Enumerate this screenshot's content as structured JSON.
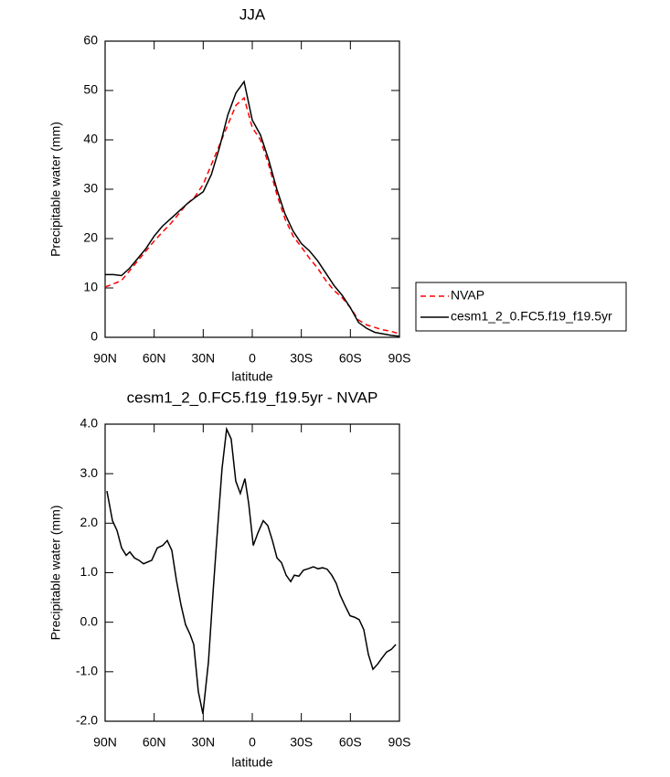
{
  "chart_data": [
    {
      "type": "line",
      "title": "JJA",
      "x_label": "latitude",
      "y_label": "Precipitable water (mm)",
      "x": [
        90,
        85,
        80,
        75,
        70,
        65,
        60,
        55,
        50,
        45,
        40,
        35,
        30,
        25,
        20,
        15,
        10,
        5,
        0,
        -5,
        -10,
        -15,
        -20,
        -25,
        -30,
        -35,
        -40,
        -45,
        -50,
        -55,
        -60,
        -65,
        -70,
        -75,
        -80,
        -85,
        -90
      ],
      "series": [
        {
          "name": "NVAP",
          "color": "#ff0000",
          "line_style": "dashed",
          "values": [
            10.2,
            10.8,
            11.5,
            13.5,
            15.5,
            17.5,
            19.5,
            21.3,
            23,
            25,
            27,
            28.5,
            31,
            35,
            39,
            43,
            47,
            48.5,
            42.5,
            40,
            35,
            29,
            24,
            20.5,
            18.3,
            16,
            14,
            11.5,
            9.5,
            8,
            6,
            3.5,
            2.5,
            2,
            1.5,
            1.2,
            0.7
          ]
        },
        {
          "name": "cesm1_2_0.FC5.f19_f19.5yr",
          "color": "#000000",
          "line_style": "solid",
          "values": [
            12.7,
            12.7,
            12.5,
            14,
            16,
            18,
            20.5,
            22.5,
            24,
            25.5,
            27,
            28.3,
            29.5,
            33,
            38.5,
            45,
            49.5,
            51.8,
            44,
            41,
            36,
            30,
            25,
            21.5,
            19,
            17.5,
            15.5,
            13,
            10.5,
            8.5,
            6,
            3,
            1.8,
            1,
            0.7,
            0.4,
            0.2
          ]
        }
      ],
      "xlim": [
        90,
        -90
      ],
      "xticks": [
        {
          "value": 90,
          "label": "90N"
        },
        {
          "value": 60,
          "label": "60N"
        },
        {
          "value": 30,
          "label": "30N"
        },
        0,
        {
          "value": -30,
          "label": "30S"
        },
        {
          "value": -60,
          "label": "60S"
        },
        {
          "value": -90,
          "label": "90S"
        }
      ],
      "ylim": [
        0,
        60
      ],
      "yticks": [
        0,
        10,
        20,
        30,
        40,
        50,
        60
      ],
      "legend": "right"
    },
    {
      "type": "line",
      "title": "cesm1_2_0.FC5.f19_f19.5yr - NVAP",
      "x_label": "latitude",
      "y_label": "Precipitable water (mm)",
      "x": [
        88.9,
        85.5,
        82.7,
        79.9,
        77.1,
        74.9,
        72.1,
        69.3,
        66.5,
        61.5,
        58.1,
        54.8,
        52.0,
        49.2,
        46.4,
        43.6,
        40.8,
        38.0,
        35.8,
        33.0,
        30.2,
        26.8,
        24.0,
        21.2,
        18.5,
        15.7,
        12.9,
        10.1,
        7.3,
        4.5,
        2.2,
        -0.6,
        -3.4,
        -6.7,
        -9.5,
        -12.3,
        -15.1,
        -17.9,
        -20.7,
        -23.5,
        -25.7,
        -28.5,
        -31.3,
        -34.1,
        -37.4,
        -40.2,
        -43.0,
        -45.8,
        -48.6,
        -51.4,
        -53.7,
        -56.5,
        -59.8,
        -62.6,
        -65.4,
        -68.2,
        -71.0,
        -73.8,
        -76.6,
        -79.4,
        -82.2,
        -85.0,
        -87.8
      ],
      "series": [
        {
          "color": "#000000",
          "line_style": "solid",
          "values": [
            2.65,
            2.05,
            1.85,
            1.5,
            1.35,
            1.42,
            1.3,
            1.25,
            1.18,
            1.25,
            1.5,
            1.55,
            1.65,
            1.45,
            0.85,
            0.35,
            -0.05,
            -0.25,
            -0.45,
            -1.4,
            -1.85,
            -0.8,
            0.6,
            1.9,
            3.1,
            3.9,
            3.7,
            2.85,
            2.6,
            2.9,
            2.4,
            1.55,
            1.8,
            2.05,
            1.95,
            1.65,
            1.3,
            1.2,
            0.95,
            0.82,
            0.95,
            0.93,
            1.05,
            1.08,
            1.12,
            1.08,
            1.1,
            1.07,
            0.95,
            0.78,
            0.55,
            0.35,
            0.13,
            0.1,
            0.05,
            -0.15,
            -0.65,
            -0.95,
            -0.85,
            -0.72,
            -0.6,
            -0.55,
            -0.45
          ]
        }
      ],
      "xlim": [
        90,
        -90
      ],
      "xticks": [
        {
          "value": 90,
          "label": "90N"
        },
        {
          "value": 60,
          "label": "60N"
        },
        {
          "value": 30,
          "label": "30N"
        },
        0,
        {
          "value": -30,
          "label": "30S"
        },
        {
          "value": -60,
          "label": "60S"
        },
        {
          "value": -90,
          "label": "90S"
        }
      ],
      "ylim": [
        -2,
        4
      ],
      "yticks": [
        {
          "value": -2,
          "label": "-2.0"
        },
        {
          "value": -1,
          "label": "-1.0"
        },
        {
          "value": 0,
          "label": "0.0"
        },
        {
          "value": 1,
          "label": "1.0"
        },
        {
          "value": 2,
          "label": "2.0"
        },
        {
          "value": 3,
          "label": "3.0"
        },
        {
          "value": 4,
          "label": "4.0"
        }
      ]
    }
  ]
}
